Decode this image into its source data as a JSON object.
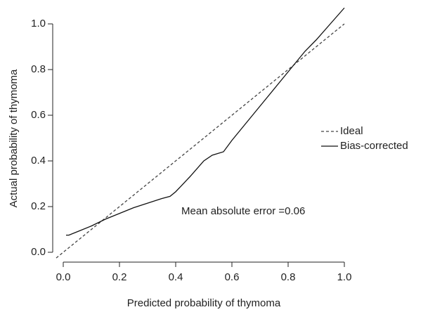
{
  "chart_data": {
    "type": "line",
    "xlabel": "Predicted probability of thymoma",
    "ylabel": "Actual probability of thymoma",
    "annotation": "Mean absolute error =0.06",
    "xlim": [
      0,
      1
    ],
    "ylim": [
      0,
      1
    ],
    "xticks": [
      {
        "value": 0,
        "label": "0.0"
      },
      {
        "value": 0.2,
        "label": "0.2"
      },
      {
        "value": 0.4,
        "label": "0.4"
      },
      {
        "value": 0.6,
        "label": "0.6"
      },
      {
        "value": 0.8,
        "label": "0.8"
      },
      {
        "value": 1,
        "label": "1.0"
      }
    ],
    "yticks": [
      {
        "value": 0,
        "label": "0.0"
      },
      {
        "value": 0.2,
        "label": "0.2"
      },
      {
        "value": 0.4,
        "label": "0.4"
      },
      {
        "value": 0.6,
        "label": "0.6"
      },
      {
        "value": 0.8,
        "label": "0.8"
      },
      {
        "value": 1,
        "label": "1.0"
      }
    ],
    "legend": "right",
    "series": [
      {
        "name": "Ideal",
        "color": "#444444",
        "dash": true,
        "x": [
          -0.025,
          1
        ],
        "values": [
          -0.025,
          1
        ]
      },
      {
        "name": "Bias-corrected",
        "color": "#111111",
        "dash": false,
        "x": [
          0.01,
          0.02,
          0.05,
          0.1,
          0.15,
          0.2,
          0.25,
          0.3,
          0.35,
          0.38,
          0.4,
          0.45,
          0.5,
          0.53,
          0.57,
          0.6,
          0.7,
          0.8,
          0.86,
          0.9,
          0.95,
          1.0
        ],
        "values": [
          0.075,
          0.075,
          0.09,
          0.115,
          0.145,
          0.17,
          0.195,
          0.215,
          0.235,
          0.245,
          0.265,
          0.33,
          0.4,
          0.425,
          0.44,
          0.49,
          0.64,
          0.79,
          0.88,
          0.93,
          1.0,
          1.07
        ]
      }
    ]
  }
}
